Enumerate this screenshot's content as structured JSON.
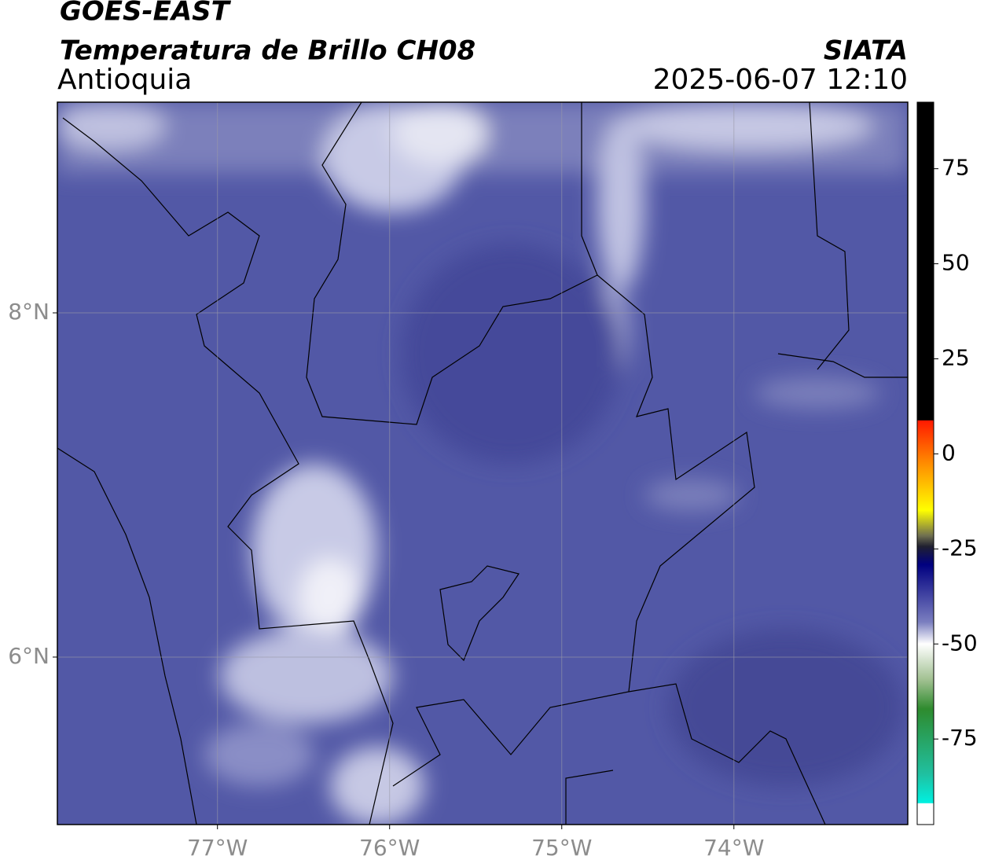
{
  "header": {
    "title": "GOES-EAST",
    "subtitle": "Temperatura de Brillo CH08",
    "region": "Antioquia",
    "source": "SIATA",
    "datetime": "2025-06-07 12:10"
  },
  "map": {
    "lonlim": [
      -77.93,
      -72.99
    ],
    "latlim": [
      5.027,
      9.224
    ],
    "lon_ticks": [
      {
        "value": -77,
        "label": "77°W"
      },
      {
        "value": -76,
        "label": "76°W"
      },
      {
        "value": -75,
        "label": "75°W"
      },
      {
        "value": -74,
        "label": "74°W"
      }
    ],
    "lat_ticks": [
      {
        "value": 8,
        "label": "8°N"
      },
      {
        "value": 6,
        "label": "6°N"
      }
    ]
  },
  "colorbar": {
    "lim": [
      -97.5,
      92.5
    ],
    "ticks": [
      75,
      50,
      25,
      0,
      -25,
      -50,
      -75
    ]
  }
}
